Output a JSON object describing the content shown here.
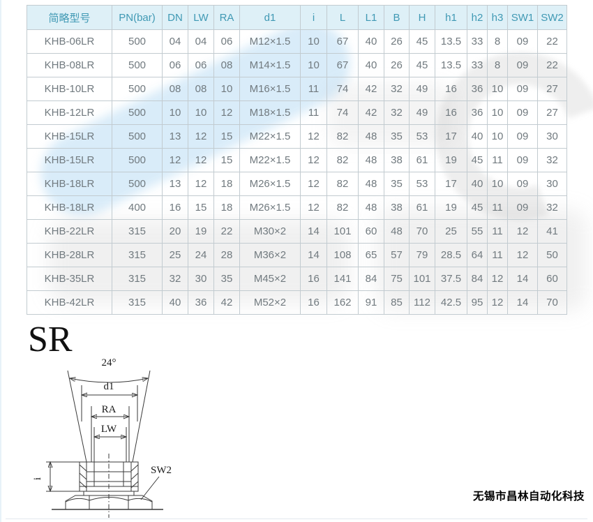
{
  "table": {
    "headers": [
      "简略型号",
      "PN(bar)",
      "DN",
      "LW",
      "RA",
      "d1",
      "i",
      "L",
      "L1",
      "B",
      "H",
      "h1",
      "h2",
      "h3",
      "SW1",
      "SW2"
    ],
    "rows": [
      [
        "KHB-06LR",
        "500",
        "04",
        "04",
        "06",
        "M12×1.5",
        "10",
        "67",
        "40",
        "26",
        "45",
        "13.5",
        "33",
        "8",
        "09",
        "22"
      ],
      [
        "KHB-08LR",
        "500",
        "06",
        "06",
        "08",
        "M14×1.5",
        "10",
        "67",
        "40",
        "26",
        "45",
        "13.5",
        "33",
        "8",
        "09",
        "22"
      ],
      [
        "KHB-10LR",
        "500",
        "08",
        "08",
        "10",
        "M16×1.5",
        "11",
        "74",
        "42",
        "32",
        "49",
        "16",
        "36",
        "10",
        "09",
        "27"
      ],
      [
        "KHB-12LR",
        "500",
        "10",
        "10",
        "12",
        "M18×1.5",
        "11",
        "74",
        "42",
        "32",
        "49",
        "16",
        "36",
        "10",
        "09",
        "27"
      ],
      [
        "KHB-15LR",
        "500",
        "13",
        "12",
        "15",
        "M22×1.5",
        "12",
        "82",
        "48",
        "35",
        "53",
        "17",
        "40",
        "10",
        "09",
        "30"
      ],
      [
        "KHB-15LR",
        "500",
        "12",
        "12",
        "15",
        "M22×1.5",
        "12",
        "82",
        "48",
        "38",
        "61",
        "19",
        "45",
        "11",
        "09",
        "32"
      ],
      [
        "KHB-18LR",
        "500",
        "13",
        "12",
        "18",
        "M26×1.5",
        "12",
        "82",
        "48",
        "35",
        "53",
        "17",
        "40",
        "10",
        "09",
        "30"
      ],
      [
        "KHB-18LR",
        "400",
        "16",
        "15",
        "18",
        "M26×1.5",
        "12",
        "82",
        "48",
        "38",
        "61",
        "19",
        "45",
        "11",
        "09",
        "32"
      ],
      [
        "KHB-22LR",
        "315",
        "20",
        "19",
        "22",
        "M30×2",
        "14",
        "101",
        "60",
        "48",
        "70",
        "25",
        "55",
        "11",
        "12",
        "41"
      ],
      [
        "KHB-28LR",
        "315",
        "25",
        "24",
        "28",
        "M36×2",
        "14",
        "108",
        "65",
        "57",
        "79",
        "28.5",
        "64",
        "11",
        "12",
        "50"
      ],
      [
        "KHB-35LR",
        "315",
        "32",
        "30",
        "35",
        "M45×2",
        "16",
        "141",
        "84",
        "75",
        "101",
        "37.5",
        "84",
        "12",
        "14",
        "60"
      ],
      [
        "KHB-42LR",
        "315",
        "40",
        "36",
        "42",
        "M52×2",
        "16",
        "162",
        "91",
        "85",
        "112",
        "42.5",
        "95",
        "12",
        "14",
        "70"
      ]
    ]
  },
  "section": {
    "label": "SR"
  },
  "diagram": {
    "angle_label": "24°",
    "d1_label": "d1",
    "ra_label": "RA",
    "lw_label": "LW",
    "i_label": "i",
    "sw2_label": "SW2"
  },
  "footer": {
    "company": "无锡市昌林自动化科技"
  },
  "colors": {
    "header_bg": "#def0f7",
    "header_text": "#4099b4",
    "grid_line": "#c2cbd0",
    "cell_text": "#717a7f",
    "watermark_blue": "#a5d2f0",
    "watermark_gray": "#aaaaaa"
  }
}
